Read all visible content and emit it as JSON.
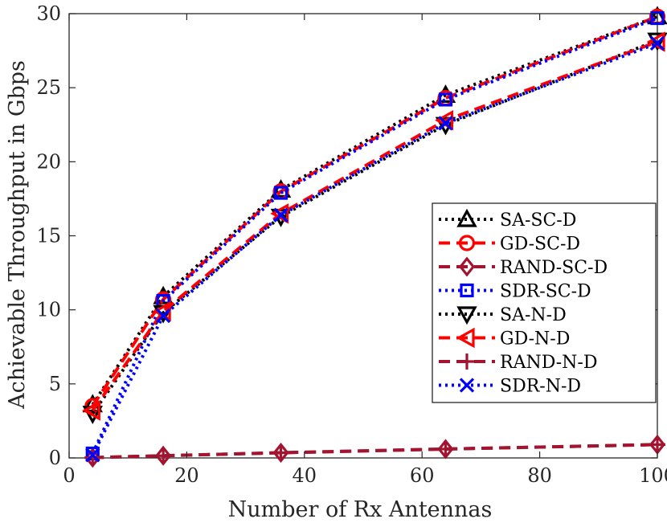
{
  "chart_data": {
    "type": "line",
    "xlabel": "Number of Rx Antennas",
    "ylabel": "Achievable Throughput in Gbps",
    "xlim": [
      0,
      100
    ],
    "ylim": [
      0,
      30
    ],
    "xticks": [
      0,
      20,
      40,
      60,
      80,
      100
    ],
    "yticks": [
      0,
      5,
      10,
      15,
      20,
      25,
      30
    ],
    "grid": false,
    "legend_position": "bottom-right",
    "x": [
      4,
      16,
      36,
      64,
      100
    ],
    "series": [
      {
        "name": "SA-SC-D",
        "values": [
          3.6,
          10.9,
          18.1,
          24.5,
          29.8
        ],
        "color": "#000000",
        "dash": "dot",
        "marker": "triangle-up"
      },
      {
        "name": "GD-SC-D",
        "values": [
          3.5,
          10.7,
          18.0,
          24.3,
          29.8
        ],
        "color": "#ff0000",
        "dash": "dash",
        "marker": "circle"
      },
      {
        "name": "RAND-SC-D",
        "values": [
          0.02,
          0.15,
          0.35,
          0.6,
          0.9
        ],
        "color": "#a2142f",
        "dash": "dash",
        "marker": "diamond"
      },
      {
        "name": "SDR-SC-D",
        "values": [
          0.3,
          10.6,
          17.9,
          24.2,
          29.7
        ],
        "color": "#0000ff",
        "dash": "dot",
        "marker": "square"
      },
      {
        "name": "SA-N-D",
        "values": [
          3.0,
          9.8,
          16.3,
          22.5,
          28.2
        ],
        "color": "#000000",
        "dash": "dot",
        "marker": "triangle-down"
      },
      {
        "name": "GD-N-D",
        "values": [
          3.2,
          9.9,
          16.5,
          22.8,
          28.1
        ],
        "color": "#ff0000",
        "dash": "dash",
        "marker": "triangle-left"
      },
      {
        "name": "RAND-N-D",
        "values": [
          0.02,
          0.15,
          0.35,
          0.6,
          0.9
        ],
        "color": "#a2142f",
        "dash": "dash",
        "marker": "plus"
      },
      {
        "name": "SDR-N-D",
        "values": [
          0.2,
          9.6,
          16.4,
          22.6,
          28.0
        ],
        "color": "#0000ff",
        "dash": "dot",
        "marker": "x"
      }
    ]
  }
}
